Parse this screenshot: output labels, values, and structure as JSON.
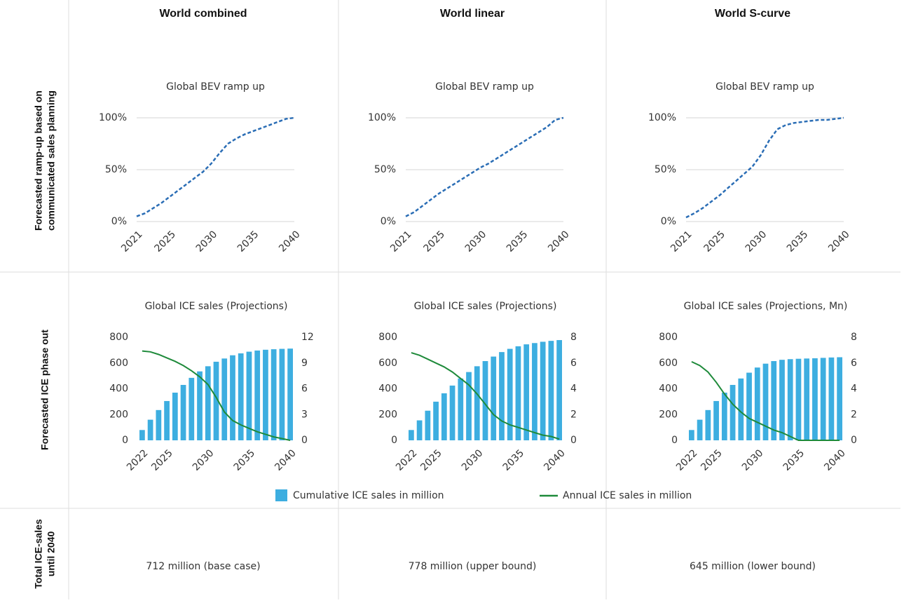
{
  "columns": [
    "World combined",
    "World linear",
    "World S-curve"
  ],
  "rows": [
    [
      "Forecasted ramp-up based on",
      "communicated sales planning"
    ],
    [
      "Forecasted ICE phase out"
    ],
    [
      "Total ICE-sales",
      "until 2040"
    ]
  ],
  "totals": [
    "712 million (base case)",
    "778 million (upper bound)",
    "645 million (lower bound)"
  ],
  "chart_data": [
    {
      "type": "line",
      "title": "Global BEV ramp up",
      "dashed": true,
      "grid": true,
      "x": [
        2021,
        2022,
        2023,
        2024,
        2025,
        2026,
        2027,
        2028,
        2029,
        2030,
        2031,
        2032,
        2033,
        2034,
        2035,
        2036,
        2037,
        2038,
        2039,
        2040
      ],
      "xlim": [
        2021,
        2040
      ],
      "xticks": [
        2021,
        2025,
        2030,
        2035,
        2040
      ],
      "ylim": [
        0,
        100
      ],
      "yticks": [
        {
          "value": 0,
          "label": "0%"
        },
        {
          "value": 50,
          "label": "50%"
        },
        {
          "value": 100,
          "label": "100%"
        }
      ],
      "series": [
        {
          "color": "#2a6db5",
          "values": [
            5,
            8,
            13,
            18,
            24,
            30,
            36,
            42,
            48,
            56,
            66,
            75,
            80,
            84,
            87,
            90,
            93,
            96,
            99,
            100
          ]
        }
      ]
    },
    {
      "type": "line",
      "title": "Global BEV ramp up",
      "dashed": true,
      "grid": true,
      "x": [
        2021,
        2022,
        2023,
        2024,
        2025,
        2026,
        2027,
        2028,
        2029,
        2030,
        2031,
        2032,
        2033,
        2034,
        2035,
        2036,
        2037,
        2038,
        2039,
        2040
      ],
      "xlim": [
        2021,
        2040
      ],
      "xticks": [
        2021,
        2025,
        2030,
        2035,
        2040
      ],
      "ylim": [
        0,
        100
      ],
      "yticks": [
        {
          "value": 0,
          "label": "0%"
        },
        {
          "value": 50,
          "label": "50%"
        },
        {
          "value": 100,
          "label": "100%"
        }
      ],
      "series": [
        {
          "color": "#2a6db5",
          "values": [
            5,
            9,
            15,
            21,
            27,
            32,
            37,
            42,
            47,
            52,
            56,
            61,
            66,
            71,
            76,
            81,
            86,
            91,
            98,
            100
          ]
        }
      ]
    },
    {
      "type": "line",
      "title": "Global BEV ramp up",
      "dashed": true,
      "grid": true,
      "x": [
        2021,
        2022,
        2023,
        2024,
        2025,
        2026,
        2027,
        2028,
        2029,
        2030,
        2031,
        2032,
        2033,
        2034,
        2035,
        2036,
        2037,
        2038,
        2039,
        2040
      ],
      "xlim": [
        2021,
        2040
      ],
      "xticks": [
        2021,
        2025,
        2030,
        2035,
        2040
      ],
      "ylim": [
        0,
        100
      ],
      "yticks": [
        {
          "value": 0,
          "label": "0%"
        },
        {
          "value": 50,
          "label": "50%"
        },
        {
          "value": 100,
          "label": "100%"
        }
      ],
      "series": [
        {
          "color": "#2a6db5",
          "values": [
            4,
            8,
            13,
            19,
            25,
            32,
            39,
            46,
            53,
            64,
            78,
            89,
            93,
            95,
            96,
            97,
            98,
            98,
            99,
            100
          ]
        }
      ]
    },
    {
      "type": "combo",
      "title": "Global ICE sales (Projections)",
      "grid": false,
      "legend": "bottom",
      "x": [
        2022,
        2023,
        2024,
        2025,
        2026,
        2027,
        2028,
        2029,
        2030,
        2031,
        2032,
        2033,
        2034,
        2035,
        2036,
        2037,
        2038,
        2039,
        2040
      ],
      "xlim": [
        2021.5,
        2040.5
      ],
      "xticks": [
        2022,
        2025,
        2030,
        2035,
        2040
      ],
      "ylim": [
        0,
        800
      ],
      "yticks": [
        0,
        200,
        400,
        600,
        800
      ],
      "y2lim": [
        0,
        12
      ],
      "y2ticks": [
        0,
        3,
        6,
        9,
        12
      ],
      "series": [
        {
          "name": "Cumulative ICE sales in million",
          "color": "#3daee0",
          "values": [
            80,
            160,
            235,
            305,
            370,
            430,
            485,
            535,
            575,
            610,
            635,
            660,
            675,
            688,
            697,
            703,
            707,
            710,
            712
          ]
        },
        {
          "name": "Annual ICE sales in million",
          "color": "#1e8a3a",
          "axis": "y2",
          "values": [
            10.4,
            10.3,
            10.0,
            9.6,
            9.2,
            8.7,
            8.1,
            7.4,
            6.5,
            5.0,
            3.3,
            2.3,
            1.8,
            1.4,
            1.0,
            0.7,
            0.4,
            0.2,
            0
          ]
        }
      ]
    },
    {
      "type": "combo",
      "title": "Global ICE sales (Projections)",
      "grid": false,
      "x": [
        2022,
        2023,
        2024,
        2025,
        2026,
        2027,
        2028,
        2029,
        2030,
        2031,
        2032,
        2033,
        2034,
        2035,
        2036,
        2037,
        2038,
        2039,
        2040
      ],
      "xlim": [
        2021.5,
        2040.5
      ],
      "xticks": [
        2022,
        2025,
        2030,
        2035,
        2040
      ],
      "ylim": [
        0,
        800
      ],
      "yticks": [
        0,
        200,
        400,
        600,
        800
      ],
      "y2lim": [
        0,
        8
      ],
      "y2ticks": [
        0,
        2,
        4,
        6,
        8
      ],
      "series": [
        {
          "color": "#3daee0",
          "values": [
            80,
            155,
            230,
            300,
            365,
            425,
            480,
            530,
            575,
            615,
            650,
            685,
            710,
            730,
            745,
            755,
            765,
            772,
            778
          ]
        },
        {
          "color": "#1e8a3a",
          "axis": "y2",
          "values": [
            6.8,
            6.6,
            6.3,
            6.0,
            5.7,
            5.3,
            4.8,
            4.3,
            3.6,
            2.8,
            2.0,
            1.5,
            1.2,
            1.0,
            0.8,
            0.6,
            0.4,
            0.3,
            0.1
          ]
        }
      ]
    },
    {
      "type": "combo",
      "title": "Global ICE sales (Projections, Mn)",
      "grid": false,
      "x": [
        2022,
        2023,
        2024,
        2025,
        2026,
        2027,
        2028,
        2029,
        2030,
        2031,
        2032,
        2033,
        2034,
        2035,
        2036,
        2037,
        2038,
        2039,
        2040
      ],
      "xlim": [
        2021.5,
        2040.5
      ],
      "xticks": [
        2022,
        2025,
        2030,
        2035,
        2040
      ],
      "ylim": [
        0,
        800
      ],
      "yticks": [
        0,
        200,
        400,
        600,
        800
      ],
      "y2lim": [
        0,
        8
      ],
      "y2ticks": [
        0,
        2,
        4,
        6,
        8
      ],
      "series": [
        {
          "color": "#3daee0",
          "values": [
            80,
            160,
            235,
            305,
            370,
            430,
            480,
            525,
            565,
            595,
            615,
            625,
            630,
            633,
            635,
            637,
            640,
            643,
            645
          ]
        },
        {
          "color": "#1e8a3a",
          "axis": "y2",
          "values": [
            6.1,
            5.8,
            5.3,
            4.5,
            3.6,
            2.8,
            2.2,
            1.7,
            1.4,
            1.1,
            0.8,
            0.6,
            0.3,
            0,
            0,
            0,
            0,
            0,
            0
          ]
        }
      ]
    }
  ]
}
